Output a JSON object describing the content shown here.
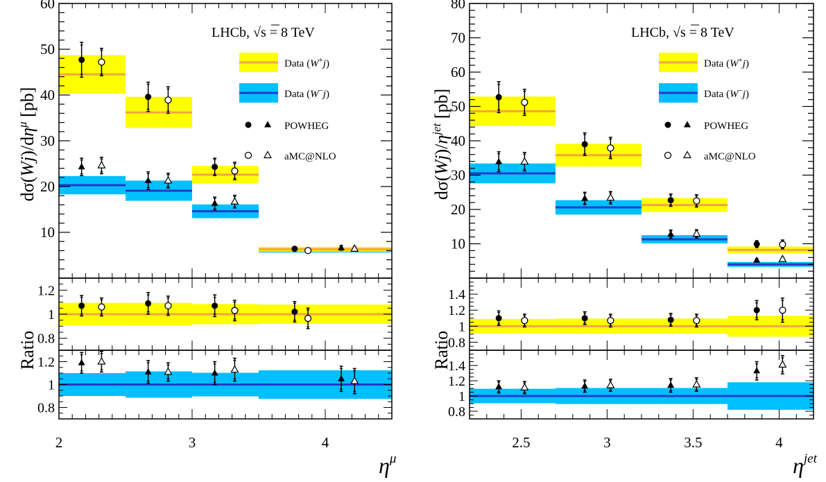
{
  "colors": {
    "plus_fill": "#ffff00",
    "plus_line": "#f5a442",
    "minus_fill": "#00bfff",
    "minus_line": "#1f3cc9"
  },
  "chart_data": [
    {
      "type": "bar",
      "title": "LHCb, √s = 8 TeV",
      "title_parts": {
        "prefix": "LHCb,",
        "sqrt": "√",
        "s": "s",
        "eq": "= 8 TeV"
      },
      "xlabel": "η^μ",
      "xlabel_parts": {
        "base": "η",
        "sup": "μ"
      },
      "ylabel": "dσ(Wj)/dη^μ [pb]",
      "ylabel_parts": {
        "pre": "dσ(",
        "w": "W",
        "j": "j",
        "mid": ")/d",
        "eta": "η",
        "sup": "μ",
        "post": " [pb]"
      },
      "xlim": [
        2,
        4.5
      ],
      "ylim": [
        0,
        60
      ],
      "xticks": [
        "2",
        "3",
        "4"
      ],
      "xtick_values": [
        2,
        3,
        4
      ],
      "yticks": [
        "10",
        "20",
        "30",
        "40",
        "50",
        "60"
      ],
      "ytick_values": [
        10,
        20,
        30,
        40,
        50,
        60
      ],
      "bins": [
        [
          2,
          2.5
        ],
        [
          2.5,
          3
        ],
        [
          3,
          3.5
        ],
        [
          3.5,
          4.5
        ]
      ],
      "legend": {
        "position": "top-right",
        "entries": [
          "Data (W⁺j)",
          "Data (W⁻j)",
          "POWHEG",
          "aMC@NLO"
        ],
        "plus_parts": {
          "pre": "Data (",
          "w": "W",
          "sup": "+",
          "j": "j",
          "post": ")"
        },
        "minus_parts": {
          "pre": "Data (",
          "w": "W",
          "sup": "−",
          "j": "j",
          "post": ")"
        }
      },
      "series": [
        {
          "name": "Data (W⁺j)",
          "values": [
            44.5,
            36.2,
            22.6,
            6.3
          ],
          "band": [
            [
              40.3,
              48.7
            ],
            [
              32.8,
              39.6
            ],
            [
              20.7,
              24.5
            ],
            [
              5.8,
              6.8
            ]
          ]
        },
        {
          "name": "Data (W⁻j)",
          "values": [
            20.3,
            19.1,
            14.6,
            6.2
          ],
          "band": [
            [
              18.3,
              22.3
            ],
            [
              16.9,
              21.3
            ],
            [
              13.1,
              16.1
            ],
            [
              5.6,
              6.8
            ]
          ]
        },
        {
          "name": "POWHEG (W⁺j)",
          "x": [
            2.17,
            2.67,
            3.17,
            3.77
          ],
          "values": [
            47.7,
            39.6,
            24.3,
            6.4
          ],
          "err_in": [
            3.2,
            2.7,
            1.6,
            0.3
          ],
          "err_out": [
            3.8,
            3.2,
            1.9,
            0.4
          ]
        },
        {
          "name": "aMC@NLO (W⁺j)",
          "x": [
            2.32,
            2.82,
            3.32,
            3.87
          ],
          "values": [
            47.2,
            38.9,
            23.4,
            6.0
          ],
          "err_in": [
            2.6,
            2.4,
            1.6,
            0.3
          ],
          "err_out": [
            3.0,
            2.9,
            1.9,
            0.4
          ]
        },
        {
          "name": "POWHEG (W⁻j)",
          "x": [
            2.17,
            2.67,
            3.17,
            4.12
          ],
          "values": [
            24.3,
            21.3,
            16.3,
            6.6
          ],
          "err_in": [
            1.5,
            1.5,
            1.1,
            0.4
          ],
          "err_out": [
            1.9,
            1.9,
            1.4,
            0.5
          ]
        },
        {
          "name": "aMC@NLO (W⁻j)",
          "x": [
            2.32,
            2.82,
            3.32,
            4.22
          ],
          "values": [
            24.6,
            21.3,
            16.7,
            6.4
          ],
          "err_in": [
            1.4,
            1.3,
            1.1,
            0.4
          ],
          "err_out": [
            1.8,
            1.6,
            1.4,
            0.5
          ]
        }
      ],
      "ratio_plus": {
        "ylabel": "Ratio",
        "ylim": [
          0.7,
          1.3
        ],
        "yticks": [
          "0.8",
          "1",
          "1.2"
        ],
        "ytick_values": [
          0.8,
          1,
          1.2
        ],
        "band": [
          [
            0.905,
            1.095
          ],
          [
            0.906,
            1.094
          ],
          [
            0.916,
            1.084
          ],
          [
            0.92,
            1.08
          ]
        ],
        "powheg": {
          "x": [
            2.17,
            2.67,
            3.17,
            3.77
          ],
          "values": [
            1.07,
            1.09,
            1.07,
            1.02
          ],
          "err_in": [
            0.07,
            0.07,
            0.07,
            0.07
          ],
          "err_out": [
            0.085,
            0.09,
            0.09,
            0.085
          ]
        },
        "amc": {
          "x": [
            2.32,
            2.82,
            3.32,
            3.87
          ],
          "values": [
            1.06,
            1.07,
            1.03,
            0.965
          ],
          "err_in": [
            0.06,
            0.065,
            0.07,
            0.07
          ],
          "err_out": [
            0.075,
            0.08,
            0.085,
            0.085
          ]
        }
      },
      "ratio_minus": {
        "ylim": [
          0.7,
          1.3
        ],
        "yticks": [
          "0.8",
          "1",
          "1.2"
        ],
        "ytick_values": [
          0.8,
          1,
          1.2
        ],
        "band": [
          [
            0.9,
            1.1
          ],
          [
            0.885,
            1.115
          ],
          [
            0.897,
            1.103
          ],
          [
            0.875,
            1.125
          ]
        ],
        "powheg": {
          "x": [
            2.17,
            2.67,
            3.17,
            4.12
          ],
          "values": [
            1.19,
            1.11,
            1.1,
            1.05
          ],
          "err_in": [
            0.07,
            0.08,
            0.08,
            0.09
          ],
          "err_out": [
            0.09,
            0.1,
            0.1,
            0.11
          ]
        },
        "amc": {
          "x": [
            2.32,
            2.82,
            3.32,
            4.22
          ],
          "values": [
            1.2,
            1.11,
            1.13,
            1.03
          ],
          "err_in": [
            0.07,
            0.06,
            0.08,
            0.09
          ],
          "err_out": [
            0.09,
            0.08,
            0.1,
            0.11
          ]
        }
      }
    },
    {
      "type": "bar",
      "title": "LHCb, √s = 8 TeV",
      "title_parts": {
        "prefix": "LHCb,",
        "sqrt": "√",
        "s": "s",
        "eq": "= 8 TeV"
      },
      "xlabel": "η^jet",
      "xlabel_parts": {
        "base": "η",
        "sup": "jet"
      },
      "ylabel": "dσ(Wj)/η^jet [pb]",
      "ylabel_parts": {
        "pre": "dσ(",
        "w": "W",
        "j": "j",
        "mid": ")/",
        "eta": "η",
        "sup": "jet",
        "post": " [pb]"
      },
      "xlim": [
        2.2,
        4.2
      ],
      "ylim": [
        0,
        80
      ],
      "xticks": [
        "2.5",
        "3",
        "3.5",
        "4"
      ],
      "xtick_values": [
        2.5,
        3,
        3.5,
        4
      ],
      "yticks": [
        "10",
        "20",
        "30",
        "40",
        "50",
        "60",
        "70",
        "80"
      ],
      "ytick_values": [
        10,
        20,
        30,
        40,
        50,
        60,
        70,
        80
      ],
      "bins": [
        [
          2.2,
          2.7
        ],
        [
          2.7,
          3.2
        ],
        [
          3.2,
          3.7
        ],
        [
          3.7,
          4.2
        ]
      ],
      "legend": {
        "position": "top-right",
        "entries": [
          "Data (W⁺j)",
          "Data (W⁻j)",
          "POWHEG",
          "aMC@NLO"
        ],
        "plus_parts": {
          "pre": "Data (",
          "w": "W",
          "sup": "+",
          "j": "j",
          "post": ")"
        },
        "minus_parts": {
          "pre": "Data (",
          "w": "W",
          "sup": "−",
          "j": "j",
          "post": ")"
        }
      },
      "series": [
        {
          "name": "Data (W⁺j)",
          "values": [
            48.6,
            35.8,
            21.3,
            8.2
          ],
          "band": [
            [
              44.3,
              52.9
            ],
            [
              32.5,
              39.1
            ],
            [
              19.3,
              23.3
            ],
            [
              7.2,
              9.2
            ]
          ]
        },
        {
          "name": "Data (W⁻j)",
          "values": [
            30.5,
            20.6,
            11.3,
            4.0
          ],
          "band": [
            [
              27.6,
              33.4
            ],
            [
              18.5,
              22.7
            ],
            [
              10.1,
              12.5
            ],
            [
              3.3,
              4.7
            ]
          ]
        },
        {
          "name": "POWHEG (W⁺j)",
          "x": [
            2.37,
            2.87,
            3.37,
            3.87
          ],
          "values": [
            52.7,
            39.0,
            22.7,
            9.9
          ],
          "err_in": [
            3.7,
            2.8,
            1.4,
            0.8
          ],
          "err_out": [
            4.5,
            3.3,
            1.8,
            1.0
          ]
        },
        {
          "name": "aMC@NLO (W⁺j)",
          "x": [
            2.52,
            3.02,
            3.52,
            4.02
          ],
          "values": [
            51.2,
            37.9,
            22.5,
            9.8
          ],
          "err_in": [
            3.2,
            2.6,
            1.4,
            1.0
          ],
          "err_out": [
            3.8,
            3.1,
            1.8,
            1.3
          ]
        },
        {
          "name": "POWHEG (W⁻j)",
          "x": [
            2.37,
            2.87,
            3.37,
            3.87
          ],
          "values": [
            33.9,
            23.2,
            12.8,
            5.2
          ],
          "err_in": [
            2.3,
            1.4,
            0.9,
            0.35
          ],
          "err_out": [
            2.9,
            1.8,
            1.2,
            0.45
          ]
        },
        {
          "name": "aMC@NLO (W⁻j)",
          "x": [
            2.52,
            3.02,
            3.52,
            4.02
          ],
          "values": [
            33.9,
            23.4,
            12.9,
            5.5
          ],
          "err_in": [
            2.2,
            1.4,
            0.9,
            0.4
          ],
          "err_out": [
            2.7,
            1.8,
            1.2,
            0.5
          ]
        }
      ],
      "ratio_plus": {
        "ylabel": "Ratio",
        "ylim": [
          0.7,
          1.6
        ],
        "yticks": [
          "0.8",
          "1",
          "1.2",
          "1.4"
        ],
        "ytick_values": [
          0.8,
          1,
          1.2,
          1.4
        ],
        "band": [
          [
            0.91,
            1.09
          ],
          [
            0.905,
            1.095
          ],
          [
            0.905,
            1.095
          ],
          [
            0.87,
            1.13
          ]
        ],
        "powheg": {
          "x": [
            2.37,
            2.87,
            3.37,
            3.87
          ],
          "values": [
            1.1,
            1.1,
            1.08,
            1.2
          ],
          "err_in": [
            0.07,
            0.06,
            0.06,
            0.09
          ],
          "err_out": [
            0.09,
            0.08,
            0.08,
            0.12
          ]
        },
        "amc": {
          "x": [
            2.52,
            3.02,
            3.52,
            4.02
          ],
          "values": [
            1.07,
            1.07,
            1.07,
            1.2
          ],
          "err_in": [
            0.06,
            0.06,
            0.06,
            0.12
          ],
          "err_out": [
            0.08,
            0.08,
            0.08,
            0.15
          ]
        }
      },
      "ratio_minus": {
        "ylim": [
          0.7,
          1.6
        ],
        "yticks": [
          "0.8",
          "1",
          "1.2",
          "1.4"
        ],
        "ytick_values": [
          0.8,
          1,
          1.2,
          1.4
        ],
        "band": [
          [
            0.905,
            1.095
          ],
          [
            0.895,
            1.105
          ],
          [
            0.895,
            1.105
          ],
          [
            0.82,
            1.18
          ]
        ],
        "powheg": {
          "x": [
            2.37,
            2.87,
            3.37,
            3.87
          ],
          "values": [
            1.12,
            1.13,
            1.14,
            1.33
          ],
          "err_in": [
            0.06,
            0.06,
            0.07,
            0.09
          ],
          "err_out": [
            0.08,
            0.08,
            0.09,
            0.12
          ]
        },
        "amc": {
          "x": [
            2.52,
            3.02,
            3.52,
            4.02
          ],
          "values": [
            1.11,
            1.14,
            1.15,
            1.41
          ],
          "err_in": [
            0.06,
            0.06,
            0.07,
            0.09
          ],
          "err_out": [
            0.08,
            0.08,
            0.09,
            0.12
          ]
        }
      }
    }
  ]
}
